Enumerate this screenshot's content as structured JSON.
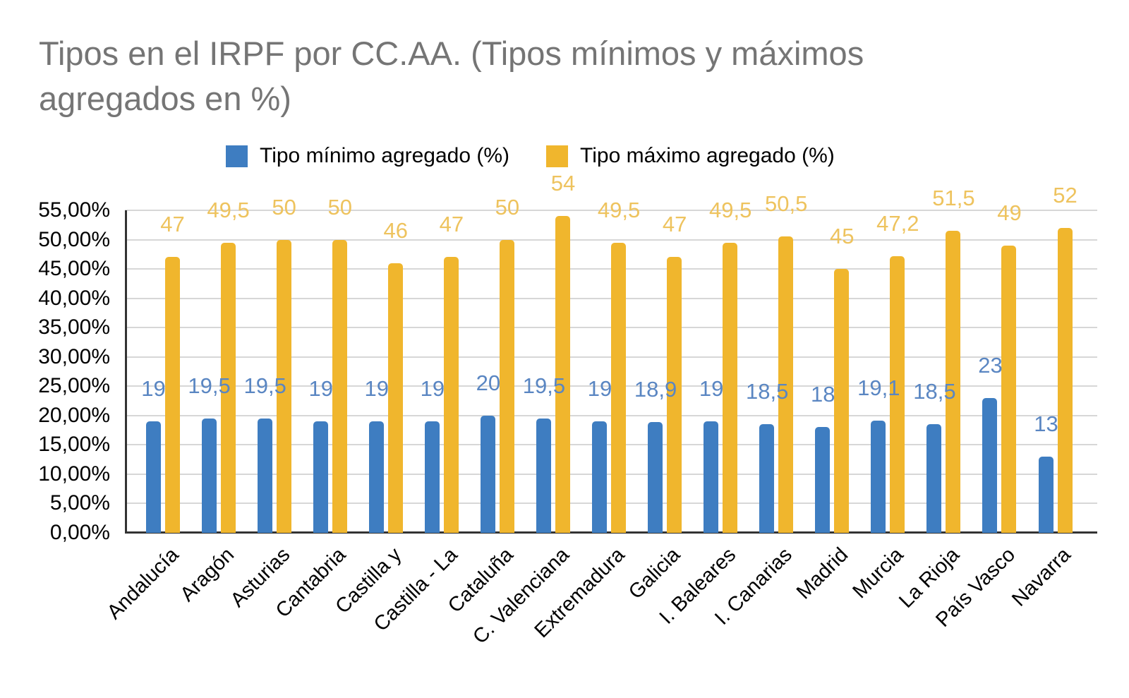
{
  "chart_data": {
    "type": "bar",
    "title": "Tipos en el IRPF por CC.AA. (Tipos mínimos y máximos agregados en %)",
    "title_lines": [
      "Tipos en el IRPF por CC.AA. (Tipos mínimos y máximos",
      "agregados en %)"
    ],
    "categories": [
      "Andalucía",
      "Aragón",
      "Asturias",
      "Cantabria",
      "Castilla y",
      "Castilla - La",
      "Cataluña",
      "C. Valenciana",
      "Extremadura",
      "Galicia",
      "I. Baleares",
      "I. Canarias",
      "Madrid",
      "Murcia",
      "La Rioja",
      "País Vasco",
      "Navarra"
    ],
    "series": [
      {
        "name": "Tipo mínimo agregado (%)",
        "color": "#3E7DC1",
        "label_color": "#5A86C2",
        "values": [
          19,
          19.5,
          19.5,
          19,
          19,
          19,
          20,
          19.5,
          19,
          18.9,
          19,
          18.5,
          18,
          19.1,
          18.5,
          23,
          13
        ],
        "labels": [
          "19",
          "19,5",
          "19,5",
          "19",
          "19",
          "19",
          "20",
          "19,5",
          "19",
          "18,9",
          "19",
          "18,5",
          "18",
          "19,1",
          "18,5",
          "23",
          "13"
        ]
      },
      {
        "name": "Tipo máximo agregado (%)",
        "color": "#F0B62D",
        "label_color": "#EEC35E",
        "values": [
          47,
          49.5,
          50,
          50,
          46,
          47,
          50,
          54,
          49.5,
          47,
          49.5,
          50.5,
          45,
          47.2,
          51.5,
          49,
          52
        ],
        "labels": [
          "47",
          "49,5",
          "50",
          "50",
          "46",
          "47",
          "50",
          "54",
          "49,5",
          "47",
          "49,5",
          "50,5",
          "45",
          "47,2",
          "51,5",
          "49",
          "52"
        ]
      }
    ],
    "y_axis": {
      "min": 0,
      "max": 55,
      "step": 5,
      "tick_labels": [
        "0,00%",
        "5,00%",
        "10,00%",
        "15,00%",
        "20,00%",
        "25,00%",
        "30,00%",
        "35,00%",
        "40,00%",
        "45,00%",
        "50,00%",
        "55,00%"
      ]
    },
    "grid": true,
    "legend_position": "top",
    "colors": {
      "title_text": "#757575",
      "axis_text": "#000000",
      "gridline": "#D7D7D7",
      "axis_line": "#333333",
      "background": "#FFFFFF"
    }
  }
}
